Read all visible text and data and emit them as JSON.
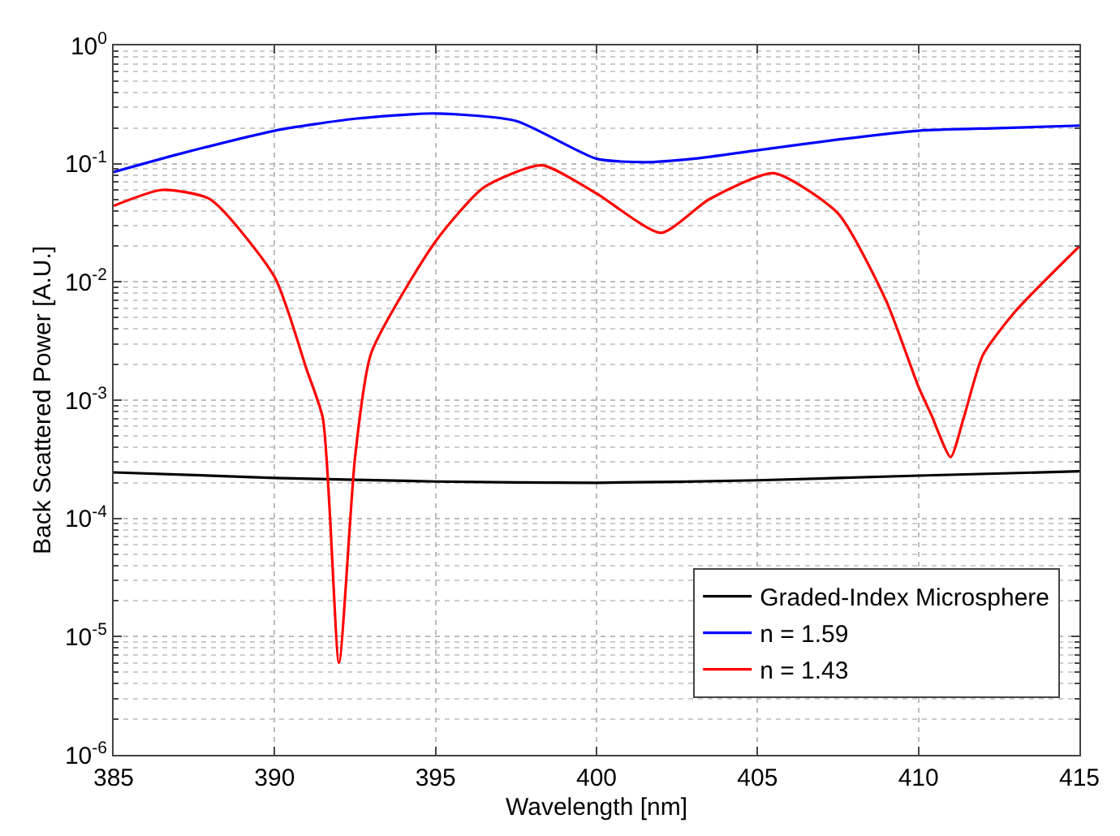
{
  "chart_data": {
    "type": "line",
    "xlabel": "Wavelength [nm]",
    "ylabel": "Back Scattered Power [A.U.]",
    "log": "y",
    "grid": true,
    "legend": "bottom right",
    "line_style": "solid",
    "marker": "none",
    "xlim": [
      385,
      415
    ],
    "xticks": [
      385,
      390,
      395,
      400,
      405,
      410,
      415
    ],
    "ylim": [
      1e-06,
      1
    ],
    "yticks": [
      {
        "value": 1e-06,
        "label": "10$^{-6}$"
      },
      {
        "value": 1e-05,
        "label": "10$^{-5}$"
      },
      {
        "value": 0.0001,
        "label": "10$^{-4}$"
      },
      {
        "value": 0.001,
        "label": "10$^{-3}$"
      },
      {
        "value": 0.01,
        "label": "10$^{-2}$"
      },
      {
        "value": 0.1,
        "label": "10$^{-1}$"
      },
      {
        "value": 1,
        "label": "10$^{0}$"
      }
    ],
    "series": [
      {
        "name": "Graded-Index Microsphere",
        "color": "#000000",
        "x": [
          385,
          390,
          395,
          400,
          405,
          410,
          415
        ],
        "values": [
          0.000245,
          0.00022,
          0.000205,
          0.0002,
          0.00021,
          0.00023,
          0.00025
        ]
      },
      {
        "name": "n = 1.59",
        "color": "#0000ff",
        "x": [
          385,
          387,
          390,
          392.5,
          395,
          397.5,
          400,
          401.5,
          403,
          405,
          407.5,
          410,
          412.5,
          415
        ],
        "values": [
          0.085,
          0.12,
          0.19,
          0.24,
          0.266,
          0.23,
          0.11,
          0.103,
          0.11,
          0.13,
          0.16,
          0.19,
          0.2,
          0.21
        ]
      },
      {
        "name": "n = 1.43",
        "color": "#ff0000",
        "x": [
          385,
          386.5,
          388,
          390,
          391,
          391.5,
          392,
          392.5,
          393,
          395,
          396.5,
          398.3,
          400,
          402,
          403.5,
          405.5,
          407.5,
          409,
          410,
          410.4,
          411,
          411.4,
          412,
          413,
          415
        ],
        "values": [
          0.044,
          0.06,
          0.05,
          0.011,
          0.0018,
          0.0007,
          6e-06,
          0.00033,
          0.0025,
          0.022,
          0.063,
          0.097,
          0.056,
          0.026,
          0.05,
          0.083,
          0.038,
          0.0069,
          0.0013,
          0.00075,
          0.00033,
          0.0007,
          0.0024,
          0.0056,
          0.02
        ]
      }
    ]
  }
}
